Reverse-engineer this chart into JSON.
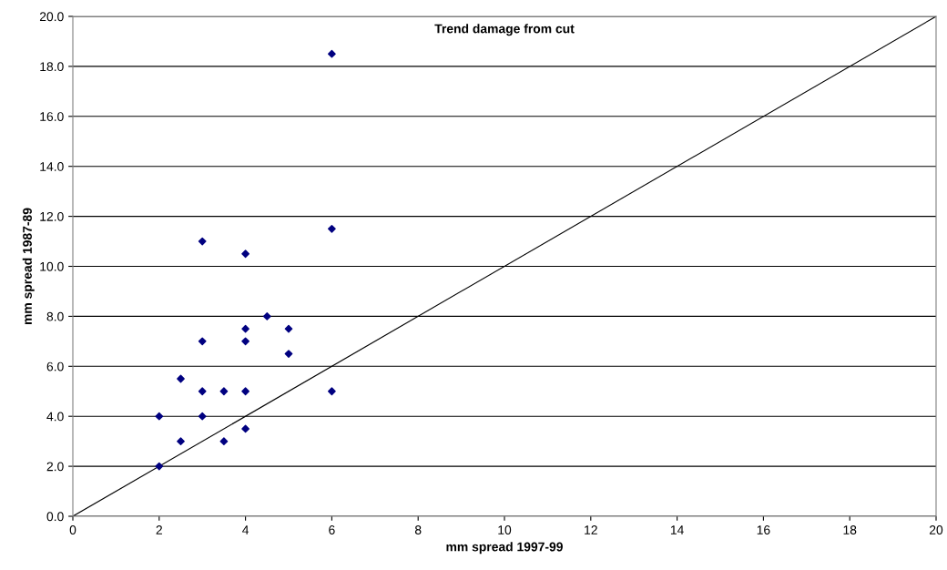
{
  "chart_data": {
    "type": "scatter",
    "title": "Trend damage from cut",
    "xlabel": "mm spread 1997-99",
    "ylabel": "mm spread 1987-89",
    "series": [
      {
        "color": "#000080",
        "marker": "diamond",
        "x": [
          2,
          2,
          2.5,
          2.5,
          3,
          3,
          3,
          3,
          3.5,
          3.5,
          4,
          4,
          4,
          4,
          4,
          4.5,
          5,
          5,
          6,
          6,
          6
        ],
        "values": [
          4,
          2,
          5.5,
          3,
          11,
          7,
          5,
          4,
          5,
          3,
          10.5,
          7.5,
          7,
          5,
          3.5,
          8,
          7.5,
          6.5,
          18.5,
          11.5,
          5
        ]
      },
      {
        "type": "line",
        "color": "#000000",
        "marker": "none",
        "line_style": "solid",
        "x": [
          0,
          20
        ],
        "values": [
          0,
          20
        ]
      }
    ],
    "xlim": [
      0,
      20
    ],
    "xticks": [
      0,
      2,
      4,
      6,
      8,
      10,
      12,
      14,
      16,
      18,
      20
    ],
    "ylim": [
      0,
      20
    ],
    "yticks": [
      {
        "value": 0,
        "label": "0.0"
      },
      {
        "value": 2,
        "label": "2.0"
      },
      {
        "value": 4,
        "label": "4.0"
      },
      {
        "value": 6,
        "label": "6.0"
      },
      {
        "value": 8,
        "label": "8.0"
      },
      {
        "value": 10,
        "label": "10.0"
      },
      {
        "value": 12,
        "label": "12.0"
      },
      {
        "value": 14,
        "label": "14.0"
      },
      {
        "value": 16,
        "label": "16.0"
      },
      {
        "value": 18,
        "label": "18.0"
      },
      {
        "value": 20,
        "label": "20.0"
      }
    ],
    "grid": "y",
    "legend": false
  }
}
